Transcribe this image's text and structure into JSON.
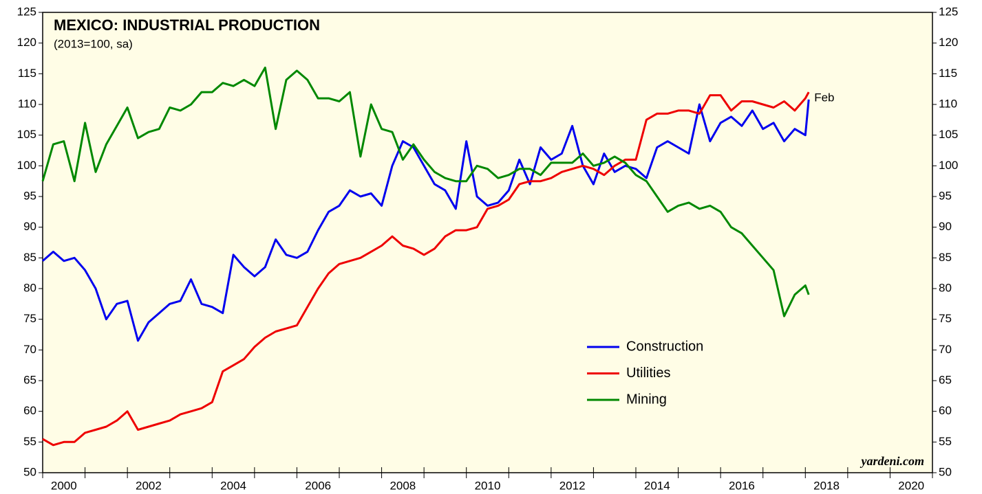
{
  "chart_data": {
    "type": "line",
    "title": "MEXICO: INDUSTRIAL PRODUCTION",
    "subtitle": "(2013=100, sa)",
    "annotation": "Feb",
    "source": "yardeni.com",
    "legend": "bottom-right",
    "x": [
      2000,
      2000.25,
      2000.5,
      2000.75,
      2001,
      2001.25,
      2001.5,
      2001.75,
      2002,
      2002.25,
      2002.5,
      2002.75,
      2003,
      2003.25,
      2003.5,
      2003.75,
      2004,
      2004.25,
      2004.5,
      2004.75,
      2005,
      2005.25,
      2005.5,
      2005.75,
      2006,
      2006.25,
      2006.5,
      2006.75,
      2007,
      2007.25,
      2007.5,
      2007.75,
      2008,
      2008.25,
      2008.5,
      2008.75,
      2009,
      2009.25,
      2009.5,
      2009.75,
      2010,
      2010.25,
      2010.5,
      2010.75,
      2011,
      2011.25,
      2011.5,
      2011.75,
      2012,
      2012.25,
      2012.5,
      2012.75,
      2013,
      2013.25,
      2013.5,
      2013.75,
      2014,
      2014.25,
      2014.5,
      2014.75,
      2015,
      2015.25,
      2015.5,
      2015.75,
      2016,
      2016.25,
      2016.5,
      2016.75,
      2017,
      2017.25,
      2017.5,
      2017.75,
      2018,
      2018.08
    ],
    "series": [
      {
        "name": "Construction",
        "color": "#0000ee",
        "values": [
          84.5,
          86,
          84.5,
          85,
          83,
          80,
          75,
          77.5,
          78,
          71.5,
          74.5,
          76,
          77.5,
          78,
          81.5,
          77.5,
          77,
          76,
          85.5,
          83.5,
          82,
          83.5,
          88,
          85.5,
          85,
          86,
          89.5,
          92.5,
          93.5,
          96,
          95,
          95.5,
          93.5,
          100,
          104,
          103,
          100,
          97,
          96,
          93,
          104,
          95,
          93.5,
          94,
          96,
          101,
          97,
          103,
          101,
          102,
          106.5,
          100,
          97,
          102,
          99,
          100,
          99.5,
          98,
          103,
          104,
          103,
          102,
          110,
          104,
          107,
          108,
          106.5,
          109,
          106,
          107,
          104,
          106,
          105,
          110.8
        ]
      },
      {
        "name": "Utilities",
        "color": "#ee0000",
        "values": [
          55.5,
          54.5,
          55,
          55,
          56.5,
          57,
          57.5,
          58.5,
          60,
          57,
          57.5,
          58,
          58.5,
          59.5,
          60,
          60.5,
          61.5,
          66.5,
          67.5,
          68.5,
          70.5,
          72,
          73,
          73.5,
          74,
          77,
          80,
          82.5,
          84,
          84.5,
          85,
          86,
          87,
          88.5,
          87,
          86.5,
          85.5,
          86.5,
          88.5,
          89.5,
          89.5,
          90,
          93,
          93.5,
          94.5,
          97,
          97.5,
          97.5,
          98,
          99,
          99.5,
          100,
          99.5,
          98.5,
          100,
          101,
          101,
          107.5,
          108.5,
          108.5,
          109,
          109,
          108.5,
          111.5,
          111.5,
          109,
          110.5,
          110.5,
          110,
          109.5,
          110.5,
          109,
          111,
          112
        ]
      },
      {
        "name": "Mining",
        "color": "#008800",
        "values": [
          97.5,
          103.5,
          104,
          97.5,
          107,
          99,
          103.5,
          106.5,
          109.5,
          104.5,
          105.5,
          106,
          109.5,
          109,
          110,
          112,
          112,
          113.5,
          113,
          114,
          113,
          116,
          106,
          114,
          115.5,
          114,
          111,
          111,
          110.5,
          112,
          101.5,
          110,
          106,
          105.5,
          101,
          103.5,
          101,
          99,
          98,
          97.5,
          97.5,
          100,
          99.5,
          98,
          98.5,
          99.5,
          99.5,
          98.5,
          100.5,
          100.5,
          100.5,
          102,
          100,
          100.5,
          101.5,
          100.5,
          98.5,
          97.5,
          95,
          92.5,
          93.5,
          94,
          93,
          93.5,
          92.5,
          90,
          89,
          87,
          85,
          83,
          75.5,
          79,
          80.5,
          79
        ]
      }
    ],
    "xlim": [
      2000,
      2021
    ],
    "xticks": [
      2000,
      2001,
      2002,
      2003,
      2004,
      2005,
      2006,
      2007,
      2008,
      2009,
      2010,
      2011,
      2012,
      2013,
      2014,
      2015,
      2016,
      2017,
      2018,
      2019,
      2020,
      2021
    ],
    "xlabels": [
      2000,
      2002,
      2004,
      2006,
      2008,
      2010,
      2012,
      2014,
      2016,
      2018,
      2020
    ],
    "ylim": [
      50,
      125
    ],
    "yticks": [
      50,
      55,
      60,
      65,
      70,
      75,
      80,
      85,
      90,
      95,
      100,
      105,
      110,
      115,
      120,
      125
    ],
    "y2lim": [
      50,
      125
    ],
    "y2ticks": [
      50,
      55,
      60,
      65,
      70,
      75,
      80,
      85,
      90,
      95,
      100,
      105,
      110,
      115,
      120,
      125
    ]
  }
}
